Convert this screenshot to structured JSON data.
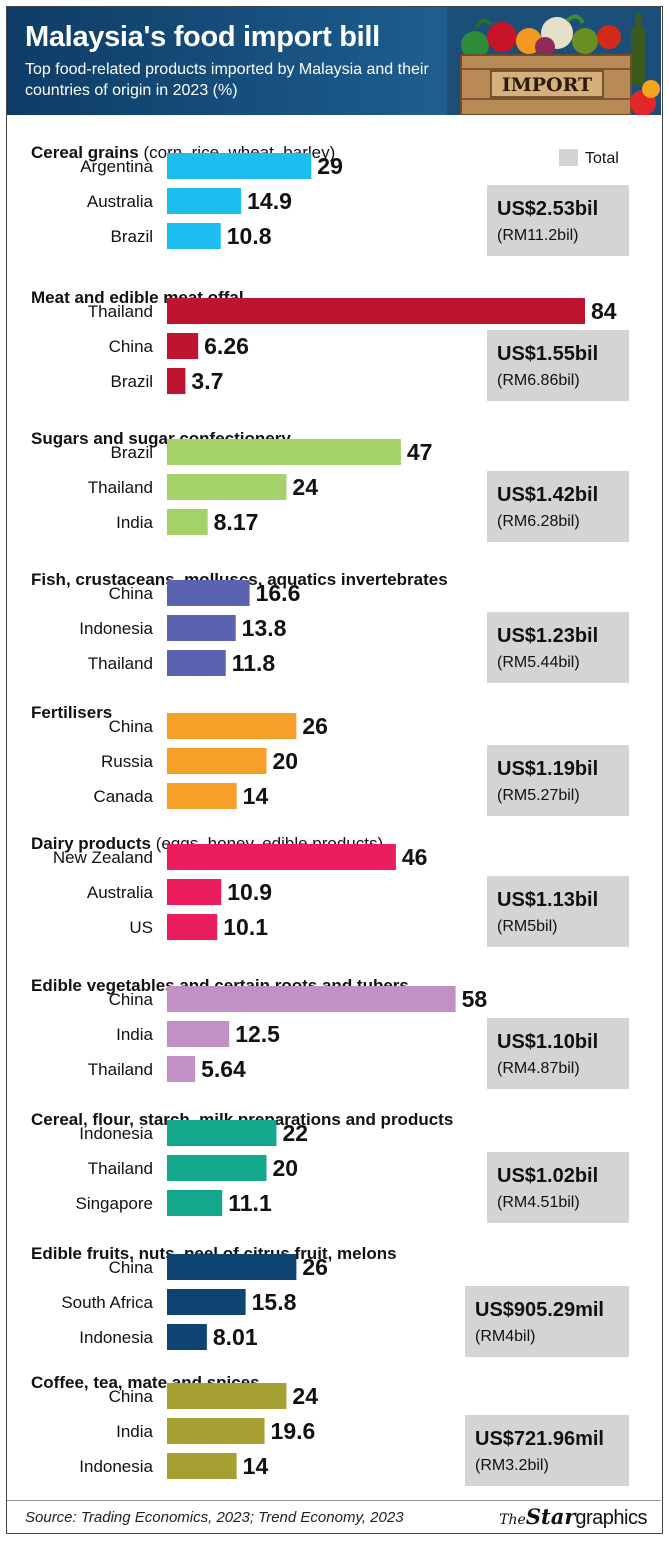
{
  "header": {
    "title": "Malaysia's food import bill",
    "subtitle": "Top food-related products imported by Malaysia and their countries of origin in 2023 (%)",
    "crate_label": "IMPORT"
  },
  "legend": {
    "label": "Total",
    "color": "#d4d4d4"
  },
  "chart_data": {
    "type": "bar",
    "orientation": "horizontal",
    "unit": "%",
    "xlim": [
      0,
      84
    ],
    "groups": [
      {
        "title": "Cereal grains",
        "note": "(corn, rice, wheat, barley)",
        "color": "#1ebdf0",
        "countries": [
          "Argentina",
          "Australia",
          "Brazil"
        ],
        "values": [
          29,
          14.9,
          10.8
        ],
        "total": "US$2.53bil",
        "total_local": "(RM11.2bil)"
      },
      {
        "title": "Meat and edible meat offal",
        "note": "",
        "color": "#bf1430",
        "countries": [
          "Thailand",
          "China",
          "Brazil"
        ],
        "values": [
          84,
          6.26,
          3.7
        ],
        "total": "US$1.55bil",
        "total_local": "(RM6.86bil)"
      },
      {
        "title": "Sugars and sugar confectionery",
        "note": "",
        "color": "#a4d16a",
        "countries": [
          "Brazil",
          "Thailand",
          "India"
        ],
        "values": [
          47,
          24,
          8.17
        ],
        "total": "US$1.42bil",
        "total_local": "(RM6.28bil)"
      },
      {
        "title": "Fish, crustaceans, molluscs, aquatics invertebrates",
        "note": "",
        "color": "#5a63ad",
        "countries": [
          "China",
          "Indonesia",
          "Thailand"
        ],
        "values": [
          16.6,
          13.8,
          11.8
        ],
        "total": "US$1.23bil",
        "total_local": "(RM5.44bil)"
      },
      {
        "title": "Fertilisers",
        "note": "",
        "color": "#f6a02a",
        "countries": [
          "China",
          "Russia",
          "Canada"
        ],
        "values": [
          26,
          20,
          14
        ],
        "total": "US$1.19bil",
        "total_local": "(RM5.27bil)"
      },
      {
        "title": "Dairy products",
        "note": "(eggs, honey, edible products)",
        "color": "#ec1d5c",
        "countries": [
          "New Zealand",
          "Australia",
          "US"
        ],
        "values": [
          46,
          10.9,
          10.1
        ],
        "total": "US$1.13bil",
        "total_local": "(RM5bil)"
      },
      {
        "title": "Edible vegetables and certain roots and tubers",
        "note": "",
        "color": "#c390c6",
        "countries": [
          "China",
          "India",
          "Thailand"
        ],
        "values": [
          58,
          12.5,
          5.64
        ],
        "total": "US$1.10bil",
        "total_local": "(RM4.87bil)"
      },
      {
        "title": "Cereal, flour, starch, milk preparations and products",
        "note": "",
        "color": "#13a78c",
        "countries": [
          "Indonesia",
          "Thailand",
          "Singapore"
        ],
        "values": [
          22,
          20,
          11.1
        ],
        "total": "US$1.02bil",
        "total_local": "(RM4.51bil)"
      },
      {
        "title": "Edible fruits, nuts, peel of citrus fruit, melons",
        "note": "",
        "color": "#0f4472",
        "countries": [
          "China",
          "South Africa",
          "Indonesia"
        ],
        "values": [
          26,
          15.8,
          8.01
        ],
        "total": "US$905.29mil",
        "total_local": "(RM4bil)"
      },
      {
        "title": "Coffee, tea, mate and spices",
        "note": "",
        "color": "#a6a033",
        "countries": [
          "China",
          "India",
          "Indonesia"
        ],
        "values": [
          24,
          19.6,
          14
        ],
        "total": "US$721.96mil",
        "total_local": "(RM3.2bil)"
      }
    ]
  },
  "footer": {
    "source": "Source: Trading Economics, 2023; Trend Economy, 2023",
    "brand_the": "The",
    "brand_star": "Star",
    "brand_graphics": "graphics"
  }
}
